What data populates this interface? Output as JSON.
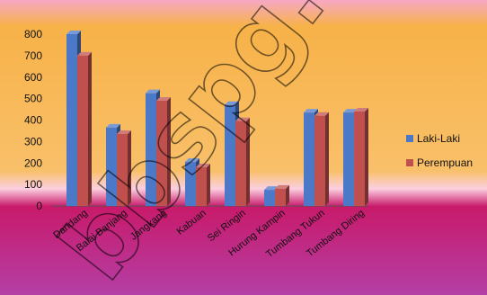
{
  "colors": {
    "bg_top": "#f6a8c4",
    "bg_mid": "#f7b248",
    "band": "#c81a6a",
    "bg_bottom": "#b43fa6",
    "laki": "#4c78c8",
    "perempuan": "#c0504d"
  },
  "watermark": "bbspg.io",
  "chart_data": {
    "type": "bar",
    "title": "",
    "xlabel": "",
    "ylabel": "",
    "ylim": [
      0,
      800
    ],
    "yticks": [
      0,
      100,
      200,
      300,
      400,
      500,
      600,
      700,
      800
    ],
    "grid": false,
    "legend_position": "right",
    "categories": [
      "Dandang",
      "Balai Banjang",
      "Jangkang",
      "Kabuan",
      "Sei Ringin",
      "Hurung Kampin",
      "Tumbang Tukun",
      "Tumbang Diring"
    ],
    "category_labels_visible": [
      "Dandang",
      "Balai Banjang",
      "Jangkang",
      "Kabuan",
      "Sei Ringin",
      "Hurung Kampin",
      "Tumbang Tukun",
      "Tumbang Diring"
    ],
    "series": [
      {
        "name": "Laki-Laki",
        "values": [
          800,
          365,
          525,
          205,
          470,
          75,
          435,
          435
        ]
      },
      {
        "name": "Perempuan",
        "values": [
          700,
          335,
          490,
          180,
          395,
          80,
          420,
          440
        ]
      }
    ]
  }
}
